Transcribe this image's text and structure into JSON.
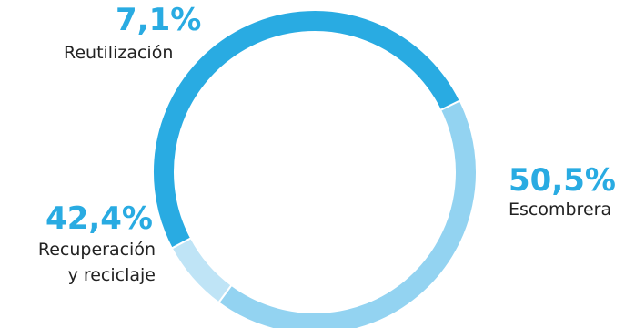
{
  "chart_data": {
    "type": "pie",
    "donut": true,
    "slices": [
      {
        "value": 50.5,
        "value_label": "50,5%",
        "label_lines": [
          "Escombrera"
        ],
        "color": "#29abe2"
      },
      {
        "value": 42.4,
        "value_label": "42,4%",
        "label_lines": [
          "Recuperación",
          "y reciclaje"
        ],
        "color": "#93d3f1"
      },
      {
        "value": 7.1,
        "value_label": "7,1%",
        "label_lines": [
          "Reutilización"
        ],
        "color": "#bfe4f6"
      }
    ],
    "legend": "none",
    "separator_color": "#ffffff"
  }
}
